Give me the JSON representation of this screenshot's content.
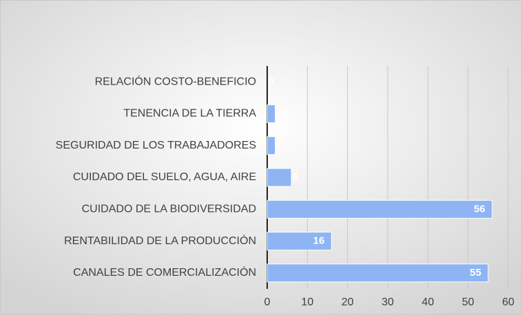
{
  "chart_data": {
    "type": "bar",
    "orientation": "horizontal",
    "categories": [
      "RELACIÓN COSTO-BENEFICIO",
      "TENENCIA DE LA TIERRA",
      "SEGURIDAD DE LOS TRABAJADORES",
      "CUIDADO DEL SUELO, AGUA, AIRE",
      "CUIDADO DE LA BIODIVERSIDAD",
      "RENTABILIDAD DE LA PRODUCCIÓN",
      "CANALES DE COMERCIALIZACIÓN"
    ],
    "values": [
      0,
      2,
      2,
      6,
      56,
      16,
      55
    ],
    "color": "#8eb4f4",
    "xlim": [
      0,
      60
    ],
    "xticks": [
      0,
      10,
      20,
      30,
      40,
      50,
      60
    ],
    "grid": true
  }
}
